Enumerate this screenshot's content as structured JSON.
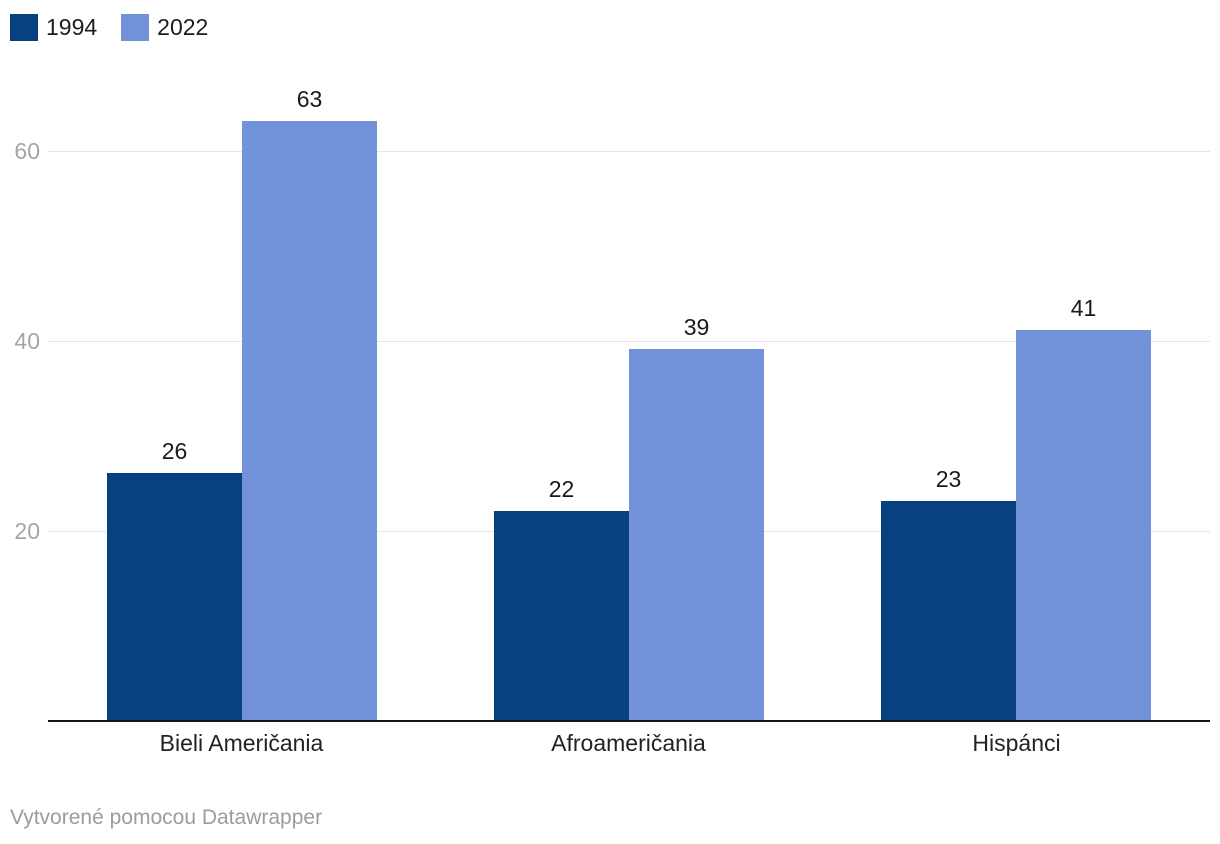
{
  "legend": {
    "items": [
      {
        "label": "1994",
        "color": "#08417f"
      },
      {
        "label": "2022",
        "color": "#7292da"
      }
    ]
  },
  "footer": {
    "text": "Vytvorené pomocou Datawrapper"
  },
  "chart_data": {
    "type": "bar",
    "categories": [
      "Bieli Američania",
      "Afroameričania",
      "Hispánci"
    ],
    "series": [
      {
        "name": "1994",
        "color": "#08417f",
        "values": [
          26,
          22,
          23
        ]
      },
      {
        "name": "2022",
        "color": "#7292da",
        "values": [
          63,
          39,
          41
        ]
      }
    ],
    "title": "",
    "xlabel": "",
    "ylabel": "",
    "yticks": [
      20,
      40,
      60
    ],
    "ylim": [
      0,
      68
    ],
    "grid": true,
    "legend_position": "top-left",
    "value_labels": true,
    "colors": {
      "gridline": "#e6e6e6",
      "axis_line": "#151515",
      "tick_label": "#a5a5a5",
      "value_label": "#1a1a1a",
      "category_label": "#222222"
    }
  }
}
